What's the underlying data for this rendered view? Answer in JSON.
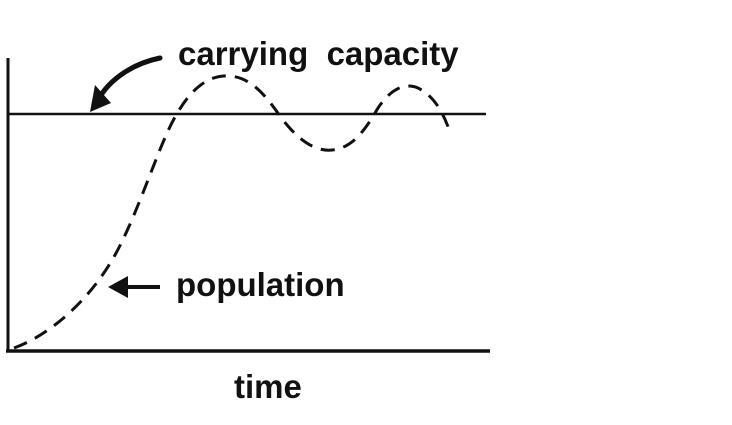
{
  "labels": {
    "carrying_capacity": "carrying  capacity",
    "population": "population",
    "x_axis": "time"
  },
  "style": {
    "ink": "#111111",
    "background": "#ffffff"
  }
}
